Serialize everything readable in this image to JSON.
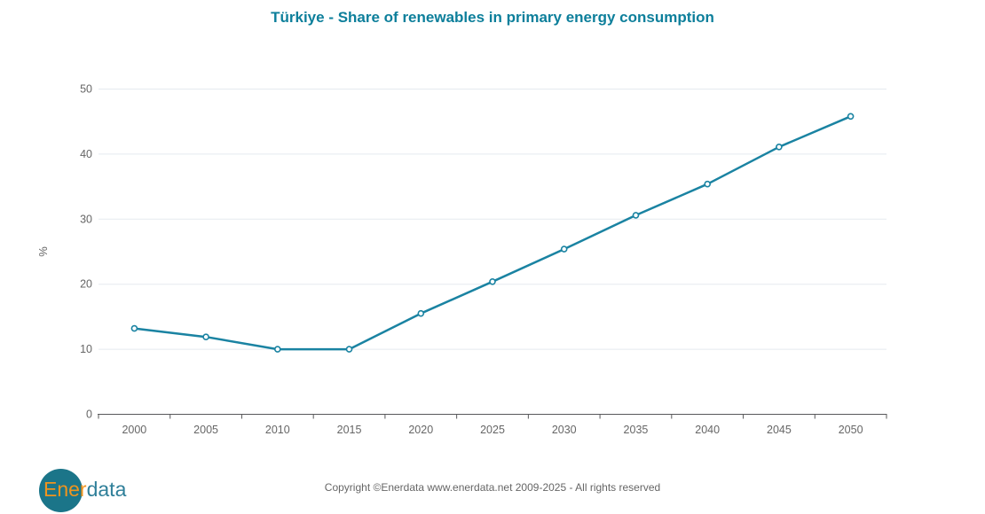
{
  "title": "Türkiye - Share of renewables in primary energy consumption",
  "chart_data": {
    "type": "line",
    "categories": [
      "2000",
      "2005",
      "2010",
      "2015",
      "2020",
      "2025",
      "2030",
      "2035",
      "2040",
      "2045",
      "2050"
    ],
    "series": [
      {
        "name": "Share of renewables in primary energy consumption",
        "values": [
          13.2,
          11.9,
          10.0,
          10.0,
          15.5,
          20.4,
          25.4,
          30.6,
          35.4,
          41.1,
          45.8
        ]
      }
    ],
    "xlabel": "",
    "ylabel": "%",
    "ylim": [
      0,
      50
    ],
    "yticks": [
      0,
      10,
      20,
      30,
      40,
      50
    ],
    "grid": true,
    "legend_position": "none",
    "marker_style": "open-circle"
  },
  "colors": {
    "title": "#0d7f9b",
    "line": "#1a83a2",
    "marker_fill": "#ffffff",
    "gridline": "#e5eaef",
    "axis_line": "#58585a",
    "axis_label": "#666666"
  },
  "footer": {
    "logo": {
      "text_ener": "Ener",
      "text_data": "data",
      "circle_color": "#1b7589",
      "ener_color": "#f0941e",
      "data_color": "#2f7f99"
    },
    "copyright": "Copyright ©Enerdata www.enerdata.net 2009-2025 - All rights reserved"
  }
}
